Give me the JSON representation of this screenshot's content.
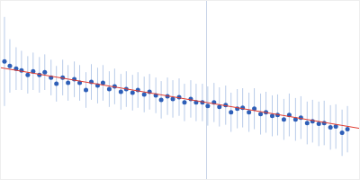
{
  "chart_data": {
    "type": "scatter",
    "xlim": [
      0,
      400
    ],
    "ylim": [
      0,
      200
    ],
    "xticks": [
      230
    ],
    "yticks": [],
    "grid": true,
    "tick_labels": false,
    "series": [
      {
        "type": "scatter",
        "marker": "circle",
        "color": "#2e5fb8",
        "x": [
          4,
          10,
          17,
          23,
          30,
          36,
          43,
          49,
          56,
          62,
          69,
          75,
          82,
          88,
          95,
          101,
          108,
          114,
          121,
          127,
          134,
          140,
          147,
          153,
          160,
          166,
          173,
          179,
          186,
          192,
          199,
          205,
          212,
          218,
          225,
          231,
          238,
          244,
          251,
          257,
          264,
          270,
          277,
          283,
          290,
          296,
          303,
          309,
          316,
          322,
          329,
          335,
          342,
          348,
          355,
          361,
          368,
          374,
          381,
          387
        ],
        "values": [
          132,
          127,
          124,
          122,
          117,
          121,
          117,
          120,
          114,
          107,
          114,
          108,
          112,
          108,
          100,
          109,
          105,
          108,
          101,
          104,
          98,
          101,
          97,
          100,
          95,
          98,
          94,
          89,
          93,
          90,
          92,
          86,
          90,
          86,
          86,
          82,
          86,
          81,
          83,
          75,
          79,
          80,
          75,
          79,
          73,
          75,
          71,
          72,
          67,
          72,
          67,
          69,
          63,
          65,
          62,
          63,
          58,
          59,
          52,
          56
        ],
        "errors": [
          50,
          30,
          24,
          22,
          21,
          21,
          20,
          20,
          20,
          20,
          20,
          20,
          20,
          20,
          20,
          20,
          20,
          20,
          20,
          20,
          20,
          20,
          20,
          20,
          20,
          20,
          20,
          21,
          21,
          21,
          21,
          21,
          21,
          21,
          21,
          22,
          22,
          22,
          22,
          22,
          22,
          22,
          22,
          23,
          23,
          23,
          23,
          23,
          23,
          24,
          24,
          24,
          24,
          24,
          25,
          25,
          25,
          25,
          26,
          26
        ]
      },
      {
        "type": "line",
        "line_style": "solid",
        "color": "#e03c31",
        "x": [
          0,
          400
        ],
        "values": [
          125,
          57
        ]
      }
    ]
  }
}
